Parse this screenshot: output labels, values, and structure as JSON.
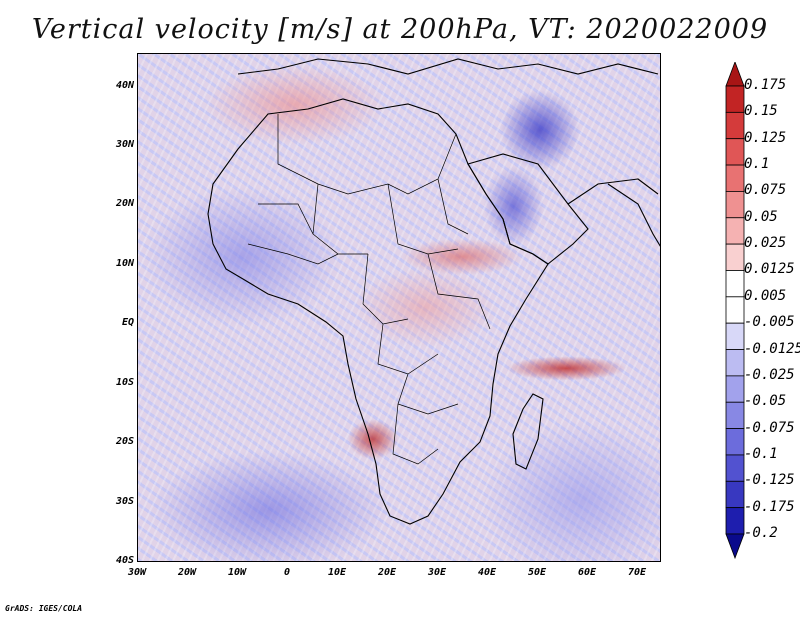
{
  "title": "Vertical velocity [m/s] at 200hPa, VT: 2020022009",
  "footer": "GrADS: IGES/COLA",
  "map": {
    "region": "Africa",
    "lat_labels": [
      "40N",
      "30N",
      "20N",
      "10N",
      "EQ",
      "10S",
      "20S",
      "30S",
      "40S"
    ],
    "lon_labels": [
      "30W",
      "20W",
      "10W",
      "0",
      "10E",
      "20E",
      "30E",
      "40E",
      "50E",
      "60E",
      "70E"
    ]
  },
  "colorbar": {
    "labels": [
      "0.175",
      "0.15",
      "0.125",
      "0.1",
      "0.075",
      "0.05",
      "0.025",
      "0.0125",
      "0.005",
      "-0.005",
      "-0.0125",
      "-0.025",
      "-0.05",
      "-0.075",
      "-0.1",
      "-0.125",
      "-0.175",
      "-0.2"
    ],
    "colors": [
      "#a81515",
      "#c22424",
      "#d43b3b",
      "#e05656",
      "#e87272",
      "#ef9191",
      "#f5b2b2",
      "#f9d0d0",
      "#ffffff",
      "#ffffff",
      "#d8d8f8",
      "#bcbcf2",
      "#a2a2ec",
      "#8888e4",
      "#6c6cdc",
      "#5252d0",
      "#3838c0",
      "#1e1eae",
      "#0a0a8c"
    ]
  }
}
